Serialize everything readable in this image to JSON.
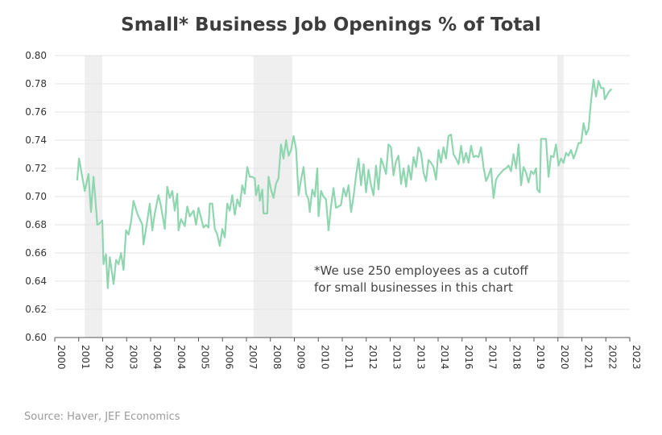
{
  "chart_data": {
    "type": "line",
    "title": "Small* Business Job Openings % of Total",
    "xlabel": "",
    "ylabel": "",
    "ylim": [
      0.6,
      0.8
    ],
    "y_ticks": [
      "0.80",
      "0.78",
      "0.76",
      "0.74",
      "0.72",
      "0.70",
      "0.68",
      "0.66",
      "0.64",
      "0.62",
      "0.60"
    ],
    "x_ticks": [
      "2000",
      "2001",
      "2002",
      "2003",
      "2004",
      "2004",
      "2005",
      "2006",
      "2007",
      "2008",
      "2009",
      "2010",
      "2011",
      "2012",
      "2013",
      "2013",
      "2014",
      "2016",
      "2017",
      "2018",
      "2019",
      "2020",
      "2021",
      "2022",
      "2023"
    ],
    "grid": true,
    "line_color": "#8fd6b0",
    "recession_shading": [
      {
        "start": 2001.2,
        "end": 2001.9
      },
      {
        "start": 2007.95,
        "end": 2009.5
      },
      {
        "start": 2020.1,
        "end": 2020.35
      }
    ],
    "series": [
      {
        "points": [
          [
            2000.9,
            0.712
          ],
          [
            2000.97,
            0.727
          ],
          [
            2001.05,
            0.719
          ],
          [
            2001.2,
            0.704
          ],
          [
            2001.35,
            0.716
          ],
          [
            2001.45,
            0.689
          ],
          [
            2001.55,
            0.714
          ],
          [
            2001.62,
            0.699
          ],
          [
            2001.7,
            0.68
          ],
          [
            2001.8,
            0.681
          ],
          [
            2001.9,
            0.683
          ],
          [
            2001.95,
            0.652
          ],
          [
            2002.05,
            0.659
          ],
          [
            2002.12,
            0.635
          ],
          [
            2002.2,
            0.657
          ],
          [
            2002.35,
            0.638
          ],
          [
            2002.45,
            0.655
          ],
          [
            2002.55,
            0.652
          ],
          [
            2002.65,
            0.66
          ],
          [
            2002.75,
            0.648
          ],
          [
            2002.85,
            0.676
          ],
          [
            2002.95,
            0.673
          ],
          [
            2003.05,
            0.682
          ],
          [
            2003.15,
            0.697
          ],
          [
            2003.3,
            0.688
          ],
          [
            2003.5,
            0.68
          ],
          [
            2003.55,
            0.666
          ],
          [
            2003.7,
            0.683
          ],
          [
            2003.8,
            0.695
          ],
          [
            2003.9,
            0.676
          ],
          [
            2004.0,
            0.688
          ],
          [
            2004.15,
            0.701
          ],
          [
            2004.25,
            0.693
          ],
          [
            2004.4,
            0.677
          ],
          [
            2004.5,
            0.707
          ],
          [
            2004.6,
            0.699
          ],
          [
            2004.7,
            0.704
          ],
          [
            2004.8,
            0.69
          ],
          [
            2004.9,
            0.702
          ],
          [
            2004.95,
            0.676
          ],
          [
            2005.05,
            0.684
          ],
          [
            2005.2,
            0.679
          ],
          [
            2005.3,
            0.693
          ],
          [
            2005.4,
            0.686
          ],
          [
            2005.55,
            0.69
          ],
          [
            2005.65,
            0.68
          ],
          [
            2005.75,
            0.692
          ],
          [
            2005.85,
            0.685
          ],
          [
            2005.95,
            0.678
          ],
          [
            2006.05,
            0.68
          ],
          [
            2006.15,
            0.678
          ],
          [
            2006.2,
            0.695
          ],
          [
            2006.3,
            0.695
          ],
          [
            2006.4,
            0.677
          ],
          [
            2006.5,
            0.673
          ],
          [
            2006.6,
            0.665
          ],
          [
            2006.7,
            0.677
          ],
          [
            2006.8,
            0.671
          ],
          [
            2006.9,
            0.695
          ],
          [
            2007.0,
            0.69
          ],
          [
            2007.1,
            0.701
          ],
          [
            2007.2,
            0.687
          ],
          [
            2007.3,
            0.698
          ],
          [
            2007.4,
            0.693
          ],
          [
            2007.5,
            0.708
          ],
          [
            2007.6,
            0.702
          ],
          [
            2007.7,
            0.721
          ],
          [
            2007.8,
            0.714
          ],
          [
            2007.9,
            0.714
          ],
          [
            2008.0,
            0.713
          ],
          [
            2008.05,
            0.701
          ],
          [
            2008.15,
            0.708
          ],
          [
            2008.2,
            0.697
          ],
          [
            2008.3,
            0.705
          ],
          [
            2008.35,
            0.688
          ],
          [
            2008.5,
            0.688
          ],
          [
            2008.55,
            0.714
          ],
          [
            2008.65,
            0.705
          ],
          [
            2008.75,
            0.699
          ],
          [
            2008.85,
            0.709
          ],
          [
            2008.95,
            0.713
          ],
          [
            2009.05,
            0.737
          ],
          [
            2009.15,
            0.727
          ],
          [
            2009.25,
            0.74
          ],
          [
            2009.35,
            0.729
          ],
          [
            2009.45,
            0.733
          ],
          [
            2009.55,
            0.743
          ],
          [
            2009.65,
            0.734
          ],
          [
            2009.75,
            0.701
          ],
          [
            2009.85,
            0.712
          ],
          [
            2009.95,
            0.721
          ],
          [
            2010.05,
            0.702
          ],
          [
            2010.15,
            0.698
          ],
          [
            2010.2,
            0.689
          ],
          [
            2010.3,
            0.705
          ],
          [
            2010.4,
            0.7
          ],
          [
            2010.5,
            0.72
          ],
          [
            2010.55,
            0.686
          ],
          [
            2010.65,
            0.704
          ],
          [
            2010.75,
            0.7
          ],
          [
            2010.85,
            0.698
          ],
          [
            2010.95,
            0.676
          ],
          [
            2011.05,
            0.693
          ],
          [
            2011.15,
            0.706
          ],
          [
            2011.25,
            0.692
          ],
          [
            2011.35,
            0.693
          ],
          [
            2011.45,
            0.694
          ],
          [
            2011.55,
            0.706
          ],
          [
            2011.65,
            0.7
          ],
          [
            2011.75,
            0.708
          ],
          [
            2011.85,
            0.689
          ],
          [
            2011.95,
            0.7
          ],
          [
            2012.05,
            0.715
          ],
          [
            2012.15,
            0.727
          ],
          [
            2012.25,
            0.708
          ],
          [
            2012.35,
            0.723
          ],
          [
            2012.45,
            0.703
          ],
          [
            2012.55,
            0.719
          ],
          [
            2012.65,
            0.708
          ],
          [
            2012.75,
            0.701
          ],
          [
            2012.85,
            0.722
          ],
          [
            2012.95,
            0.705
          ],
          [
            2013.05,
            0.727
          ],
          [
            2013.15,
            0.722
          ],
          [
            2013.25,
            0.716
          ],
          [
            2013.35,
            0.737
          ],
          [
            2013.45,
            0.735
          ],
          [
            2013.55,
            0.715
          ],
          [
            2013.65,
            0.725
          ],
          [
            2013.75,
            0.729
          ],
          [
            2013.85,
            0.709
          ],
          [
            2013.95,
            0.72
          ],
          [
            2014.05,
            0.707
          ],
          [
            2014.15,
            0.722
          ],
          [
            2014.25,
            0.712
          ],
          [
            2014.35,
            0.728
          ],
          [
            2014.45,
            0.721
          ],
          [
            2014.55,
            0.735
          ],
          [
            2014.65,
            0.731
          ],
          [
            2014.75,
            0.717
          ],
          [
            2014.85,
            0.711
          ],
          [
            2014.95,
            0.726
          ],
          [
            2015.05,
            0.724
          ],
          [
            2015.15,
            0.721
          ],
          [
            2015.25,
            0.712
          ],
          [
            2015.35,
            0.733
          ],
          [
            2015.45,
            0.724
          ],
          [
            2015.55,
            0.735
          ],
          [
            2015.65,
            0.727
          ],
          [
            2015.75,
            0.743
          ],
          [
            2015.85,
            0.744
          ],
          [
            2015.95,
            0.73
          ],
          [
            2016.05,
            0.727
          ],
          [
            2016.15,
            0.723
          ],
          [
            2016.25,
            0.736
          ],
          [
            2016.35,
            0.724
          ],
          [
            2016.45,
            0.731
          ],
          [
            2016.55,
            0.724
          ],
          [
            2016.65,
            0.736
          ],
          [
            2016.75,
            0.728
          ],
          [
            2016.85,
            0.729
          ],
          [
            2016.95,
            0.728
          ],
          [
            2017.05,
            0.735
          ],
          [
            2017.15,
            0.721
          ],
          [
            2017.25,
            0.711
          ],
          [
            2017.35,
            0.715
          ],
          [
            2017.45,
            0.72
          ],
          [
            2017.55,
            0.699
          ],
          [
            2017.65,
            0.712
          ],
          [
            2017.75,
            0.715
          ],
          [
            2017.85,
            0.717
          ],
          [
            2017.95,
            0.719
          ],
          [
            2018.05,
            0.72
          ],
          [
            2018.15,
            0.722
          ],
          [
            2018.25,
            0.718
          ],
          [
            2018.35,
            0.73
          ],
          [
            2018.45,
            0.72
          ],
          [
            2018.55,
            0.737
          ],
          [
            2018.65,
            0.708
          ],
          [
            2018.75,
            0.721
          ],
          [
            2018.85,
            0.717
          ],
          [
            2018.95,
            0.71
          ],
          [
            2019.05,
            0.718
          ],
          [
            2019.15,
            0.716
          ],
          [
            2019.25,
            0.72
          ],
          [
            2019.3,
            0.705
          ],
          [
            2019.4,
            0.703
          ],
          [
            2019.45,
            0.741
          ],
          [
            2019.65,
            0.741
          ],
          [
            2019.75,
            0.714
          ],
          [
            2019.85,
            0.729
          ],
          [
            2019.95,
            0.728
          ],
          [
            2020.05,
            0.737
          ],
          [
            2020.15,
            0.722
          ],
          [
            2020.25,
            0.727
          ],
          [
            2020.35,
            0.724
          ],
          [
            2020.45,
            0.731
          ],
          [
            2020.55,
            0.729
          ],
          [
            2020.65,
            0.733
          ],
          [
            2020.75,
            0.727
          ],
          [
            2020.85,
            0.732
          ],
          [
            2020.95,
            0.738
          ],
          [
            2021.05,
            0.738
          ],
          [
            2021.15,
            0.752
          ],
          [
            2021.25,
            0.744
          ],
          [
            2021.35,
            0.748
          ],
          [
            2021.45,
            0.768
          ],
          [
            2021.55,
            0.783
          ],
          [
            2021.65,
            0.771
          ],
          [
            2021.75,
            0.782
          ],
          [
            2021.85,
            0.777
          ],
          [
            2021.95,
            0.777
          ],
          [
            2022.0,
            0.769
          ],
          [
            2022.15,
            0.774
          ],
          [
            2022.25,
            0.776
          ]
        ]
      }
    ]
  },
  "annotation": {
    "line1": "*We use 250 employees as a cutoff",
    "line2": "for small businesses in this chart"
  },
  "source": "Source: Haver, JEF Economics"
}
